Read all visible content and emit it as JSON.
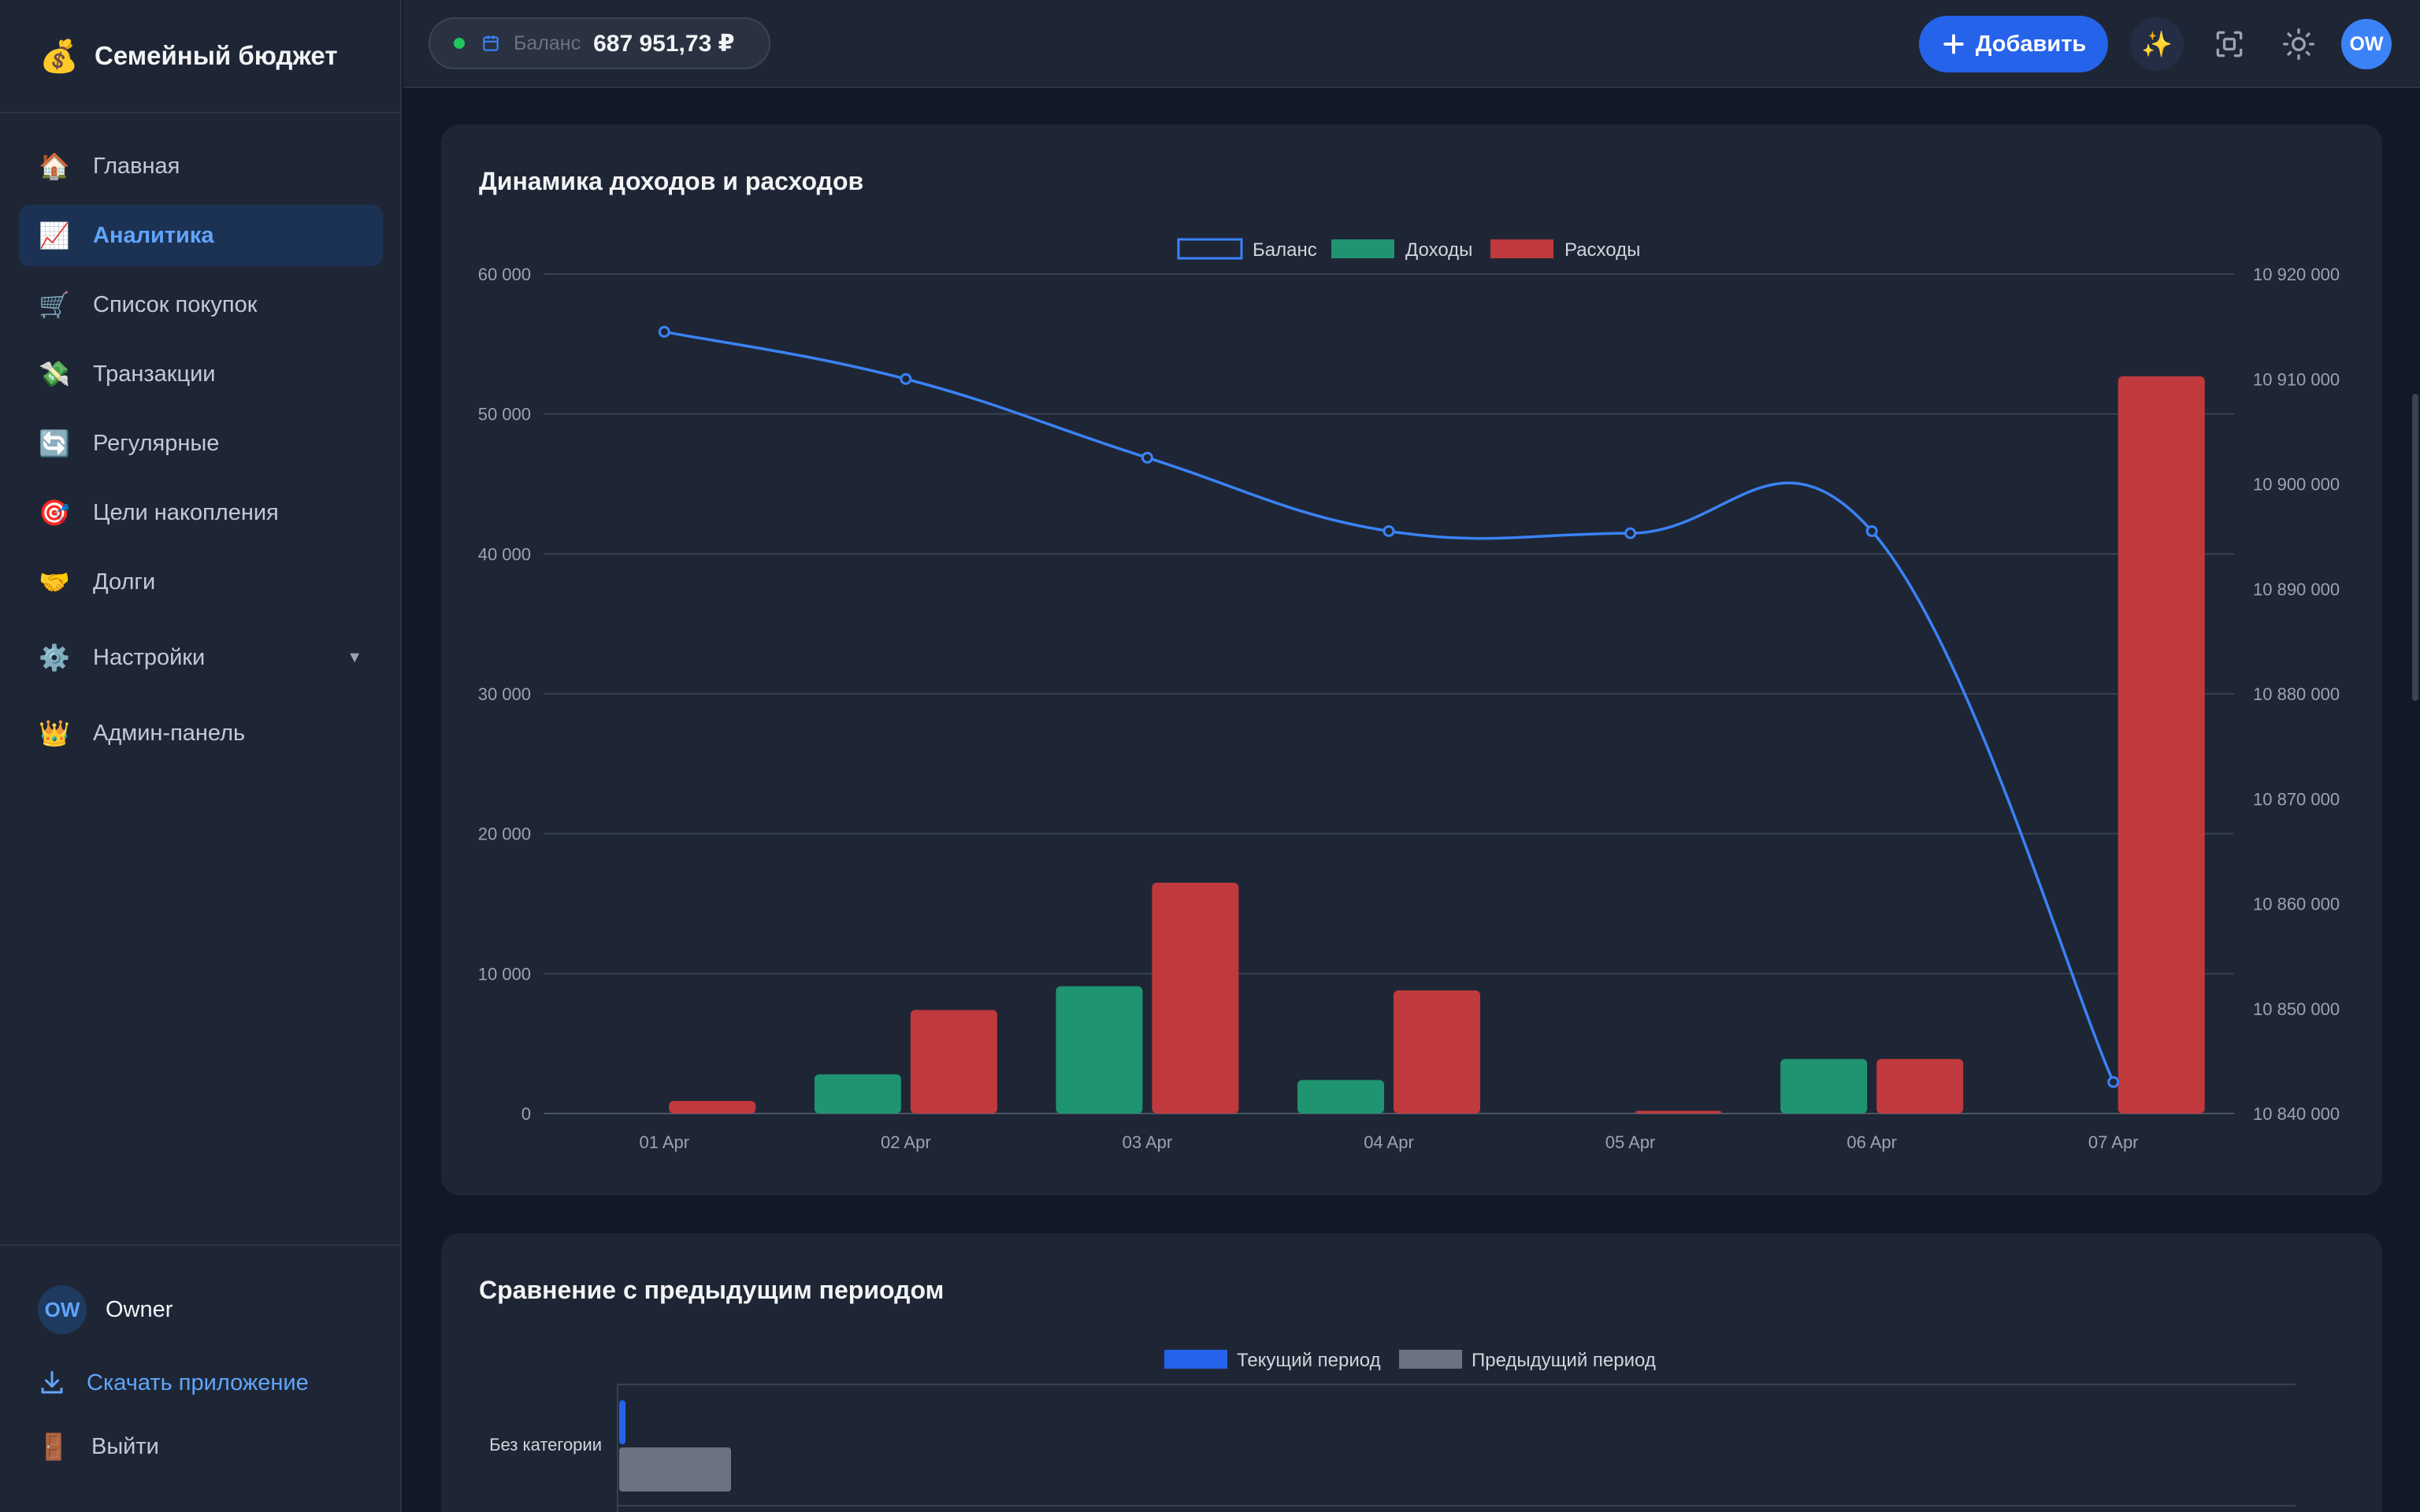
{
  "brand": {
    "emoji": "💰",
    "title": "Семейный бюджет"
  },
  "nav": [
    {
      "emoji": "🏠",
      "label": "Главная",
      "active": false
    },
    {
      "emoji": "📈",
      "label": "Аналитика",
      "active": true
    },
    {
      "emoji": "🛒",
      "label": "Список покупок",
      "active": false
    },
    {
      "emoji": "💸",
      "label": "Транзакции",
      "active": false
    },
    {
      "emoji": "🔄",
      "label": "Регулярные",
      "active": false
    },
    {
      "emoji": "🎯",
      "label": "Цели накопления",
      "active": false
    },
    {
      "emoji": "🤝",
      "label": "Долги",
      "active": false
    },
    {
      "emoji": "⚙️",
      "label": "Настройки",
      "active": false,
      "caret": "▼"
    },
    {
      "emoji": "👑",
      "label": "Админ-панель",
      "active": false
    }
  ],
  "sidebar_bottom": {
    "user_initials": "OW",
    "user_name": "Owner",
    "download_label": "Скачать приложение",
    "logout_emoji": "🚪",
    "logout_label": "Выйти"
  },
  "header": {
    "balance_label": "Баланс",
    "balance_value": "687 951,73 ₽",
    "add_label": "Добавить",
    "ai_emoji": "✨",
    "avatar_initials": "OW"
  },
  "icons": {
    "calendar": "calendar-icon",
    "plus": "plus-icon",
    "sparkle": "sparkle-icon",
    "focus": "focus-icon",
    "theme": "sun-icon",
    "download": "download-icon"
  },
  "colors": {
    "accent": "#2563eb",
    "income": "#1f9470",
    "expense": "#c0393d",
    "balance_line": "#3b82f6",
    "previous_period": "#6b7280"
  },
  "chart_data": [
    {
      "type": "bar",
      "title": "Динамика доходов и расходов",
      "categories": [
        "01 Apr",
        "02 Apr",
        "03 Apr",
        "04 Apr",
        "05 Apr",
        "06 Apr",
        "07 Apr"
      ],
      "legend_position": "top-center",
      "grid": true,
      "y_left": {
        "ylim": [
          0,
          60000
        ],
        "ticks": [
          "0",
          "10 000",
          "20 000",
          "30 000",
          "40 000",
          "50 000",
          "60 000"
        ]
      },
      "y_right": {
        "ylim": [
          10840000,
          10920000
        ],
        "ticks": [
          "10 840 000",
          "10 850 000",
          "10 860 000",
          "10 870 000",
          "10 880 000",
          "10 890 000",
          "10 900 000",
          "10 910 000",
          "10 920 000"
        ]
      },
      "series": [
        {
          "name": "Баланс",
          "type": "line",
          "axis": "right",
          "values": [
            10914500,
            10910000,
            10902500,
            10895500,
            10895300,
            10895500,
            10843000
          ]
        },
        {
          "name": "Доходы",
          "type": "bar",
          "axis": "left",
          "values": [
            0,
            2800,
            9100,
            2400,
            0,
            3900,
            0
          ]
        },
        {
          "name": "Расходы",
          "type": "bar",
          "axis": "left",
          "values": [
            900,
            7400,
            16500,
            8800,
            200,
            3900,
            52700
          ]
        }
      ]
    },
    {
      "type": "bar",
      "orientation": "horizontal",
      "title": "Сравнение с предыдущим периодом",
      "categories": [
        "Без категории"
      ],
      "legend_position": "top-center",
      "series": [
        {
          "name": "Текущий период",
          "values": [
            900
          ]
        },
        {
          "name": "Предыдущий период",
          "values": [
            52000
          ]
        }
      ]
    }
  ]
}
